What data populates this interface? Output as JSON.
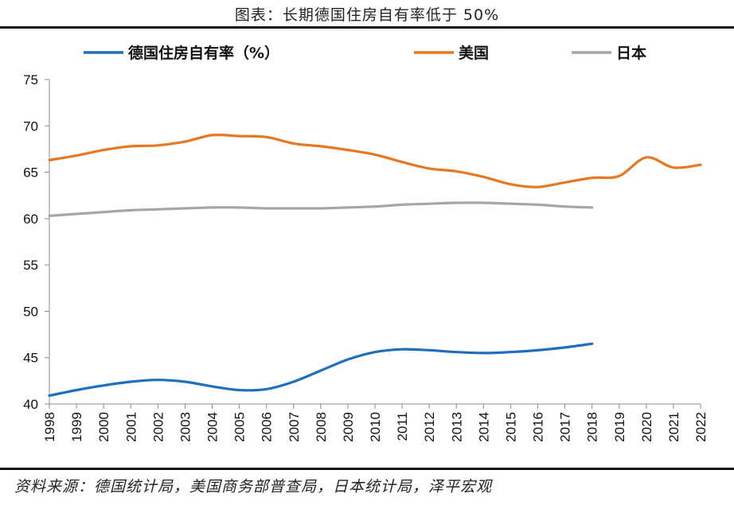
{
  "header": {
    "title": "图表：长期德国住房自有率低于 50%"
  },
  "footer": {
    "source": "资料来源：德国统计局，美国商务部普查局，日本统计局，泽平宏观"
  },
  "colors": {
    "germany": "#1f6fbf",
    "usa": "#e87722",
    "japan": "#a6a6a6"
  },
  "chart_data": {
    "type": "line",
    "title": "图表：长期德国住房自有率低于 50%",
    "xlabel": "",
    "ylabel": "",
    "ylim": [
      40,
      75
    ],
    "yticks": [
      40,
      45,
      50,
      55,
      60,
      65,
      70,
      75
    ],
    "x": [
      1998,
      1999,
      2000,
      2001,
      2002,
      2003,
      2004,
      2005,
      2006,
      2007,
      2008,
      2009,
      2010,
      2011,
      2012,
      2013,
      2014,
      2015,
      2016,
      2017,
      2018,
      2019,
      2020,
      2021,
      2022
    ],
    "legend_position": "top",
    "grid": false,
    "series": [
      {
        "name": "德国住房自有率（%）",
        "color": "#1f6fbf",
        "values": [
          40.9,
          41.5,
          42.0,
          42.4,
          42.6,
          42.4,
          41.9,
          41.5,
          41.6,
          42.4,
          43.6,
          44.8,
          45.6,
          45.9,
          45.8,
          45.6,
          45.5,
          45.6,
          45.8,
          46.1,
          46.5,
          null,
          null,
          null,
          null
        ]
      },
      {
        "name": "美国",
        "color": "#e87722",
        "values": [
          66.3,
          66.8,
          67.4,
          67.8,
          67.9,
          68.3,
          69.0,
          68.9,
          68.8,
          68.1,
          67.8,
          67.4,
          66.9,
          66.1,
          65.4,
          65.1,
          64.5,
          63.7,
          63.4,
          63.9,
          64.4,
          64.6,
          66.6,
          65.5,
          65.8
        ]
      },
      {
        "name": "日本",
        "color": "#a6a6a6",
        "values": [
          60.3,
          60.5,
          60.7,
          60.9,
          61.0,
          61.1,
          61.2,
          61.2,
          61.1,
          61.1,
          61.1,
          61.2,
          61.3,
          61.5,
          61.6,
          61.7,
          61.7,
          61.6,
          61.5,
          61.3,
          61.2,
          null,
          null,
          null,
          null
        ]
      }
    ]
  }
}
